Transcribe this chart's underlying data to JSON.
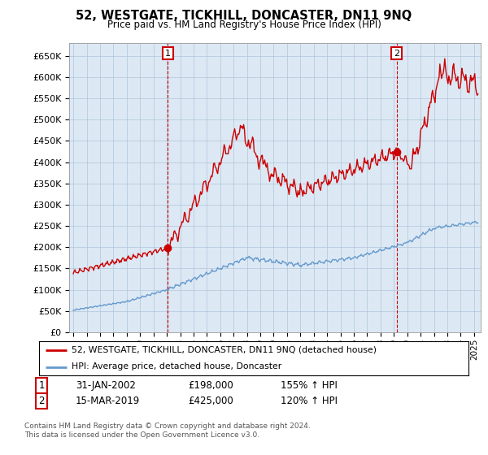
{
  "title": "52, WESTGATE, TICKHILL, DONCASTER, DN11 9NQ",
  "subtitle": "Price paid vs. HM Land Registry's House Price Index (HPI)",
  "red_label": "52, WESTGATE, TICKHILL, DONCASTER, DN11 9NQ (detached house)",
  "blue_label": "HPI: Average price, detached house, Doncaster",
  "annotation1_date": "31-JAN-2002",
  "annotation1_price": "£198,000",
  "annotation1_hpi": "155% ↑ HPI",
  "annotation2_date": "15-MAR-2019",
  "annotation2_price": "£425,000",
  "annotation2_hpi": "120% ↑ HPI",
  "footer": "Contains HM Land Registry data © Crown copyright and database right 2024.\nThis data is licensed under the Open Government Licence v3.0.",
  "ylim": [
    0,
    680000
  ],
  "yticks": [
    0,
    50000,
    100000,
    150000,
    200000,
    250000,
    300000,
    350000,
    400000,
    450000,
    500000,
    550000,
    600000,
    650000
  ],
  "ytick_labels": [
    "£0",
    "£50K",
    "£100K",
    "£150K",
    "£200K",
    "£250K",
    "£300K",
    "£350K",
    "£400K",
    "£450K",
    "£500K",
    "£550K",
    "£600K",
    "£650K"
  ],
  "xlim_start": 1994.7,
  "xlim_end": 2025.5,
  "red_color": "#cc0000",
  "blue_color": "#6699cc",
  "plot_bg_color": "#dce9f5",
  "marker1_x": 2002.08,
  "marker1_y": 198000,
  "marker2_x": 2019.21,
  "marker2_y": 425000,
  "vline1_x": 2002.08,
  "vline2_x": 2019.21,
  "background_color": "#ffffff",
  "grid_color": "#b0c4d8"
}
